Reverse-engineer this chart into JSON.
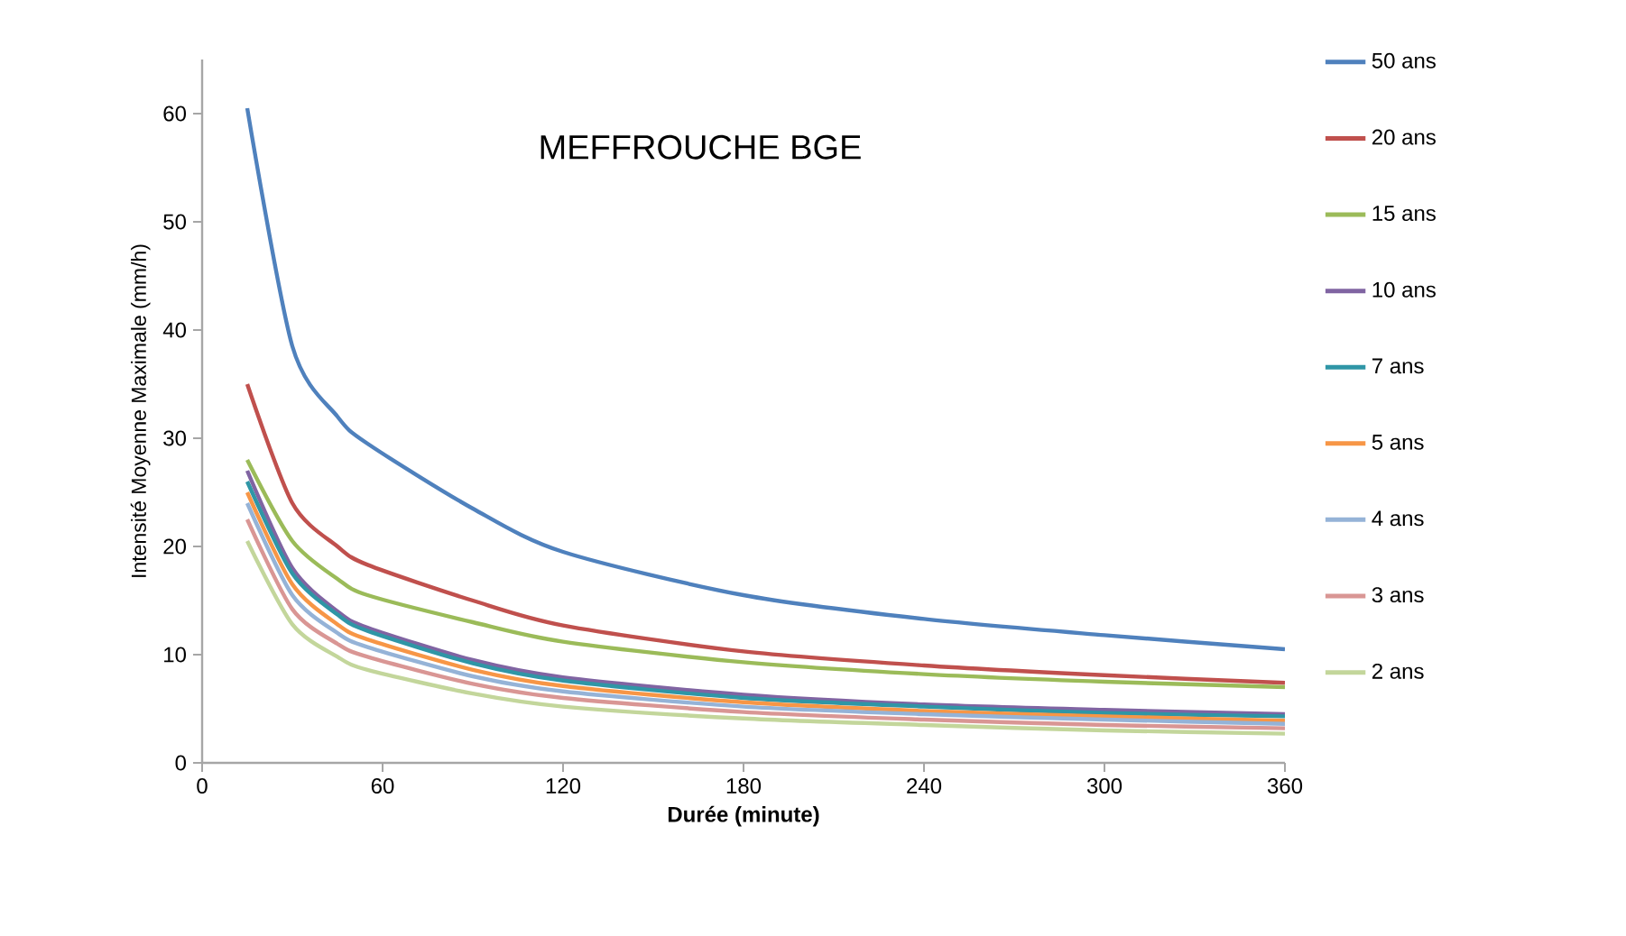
{
  "chart_data": {
    "type": "line",
    "title": "MEFFROUCHE BGE",
    "xlabel": "Durée (minute)",
    "ylabel": "Intensité Moyenne Maximale (mm/h)",
    "x": [
      15,
      30,
      45,
      55,
      90,
      120,
      180,
      240,
      300,
      360
    ],
    "xlim": [
      0,
      360
    ],
    "xticks": [
      0,
      60,
      120,
      180,
      240,
      300,
      360
    ],
    "ylim": [
      0,
      65
    ],
    "yticks": [
      0,
      10,
      20,
      30,
      40,
      50,
      60
    ],
    "grid": false,
    "legend": "right",
    "marker": "none",
    "line_style": "solid",
    "series": [
      {
        "name": "50 ans",
        "color": "#4f81bd",
        "values": [
          60.5,
          38.5,
          32,
          29.5,
          23.5,
          19.5,
          15.5,
          13.3,
          11.8,
          10.5
        ]
      },
      {
        "name": "20 ans",
        "color": "#c0504d",
        "values": [
          35,
          24,
          20,
          18.3,
          15,
          12.7,
          10.3,
          9,
          8.1,
          7.4
        ]
      },
      {
        "name": "15 ans",
        "color": "#9bbb59",
        "values": [
          28,
          20.5,
          17,
          15.5,
          13,
          11.2,
          9.3,
          8.2,
          7.5,
          7
        ]
      },
      {
        "name": "10 ans",
        "color": "#8064a2",
        "values": [
          27,
          18,
          14,
          12.5,
          9.5,
          7.9,
          6.3,
          5.4,
          4.9,
          4.5
        ]
      },
      {
        "name": "7 ans",
        "color": "#2f96a6",
        "values": [
          26,
          17.5,
          13.7,
          12.2,
          9.2,
          7.6,
          6,
          5.2,
          4.6,
          4.3
        ]
      },
      {
        "name": "5 ans",
        "color": "#f79646",
        "values": [
          25,
          16.5,
          12.8,
          11.4,
          8.6,
          7.1,
          5.6,
          4.8,
          4.3,
          3.9
        ]
      },
      {
        "name": "4 ans",
        "color": "#95b3d7",
        "values": [
          24,
          15.5,
          12,
          10.7,
          8,
          6.6,
          5.2,
          4.5,
          4,
          3.6
        ]
      },
      {
        "name": "3 ans",
        "color": "#d99694",
        "values": [
          22.5,
          14.2,
          11,
          9.8,
          7.3,
          6,
          4.7,
          4,
          3.5,
          3.2
        ]
      },
      {
        "name": "2 ans",
        "color": "#c3d69b",
        "values": [
          20.5,
          12.8,
          9.8,
          8.6,
          6.4,
          5.2,
          4.1,
          3.5,
          3,
          2.7
        ]
      }
    ]
  }
}
